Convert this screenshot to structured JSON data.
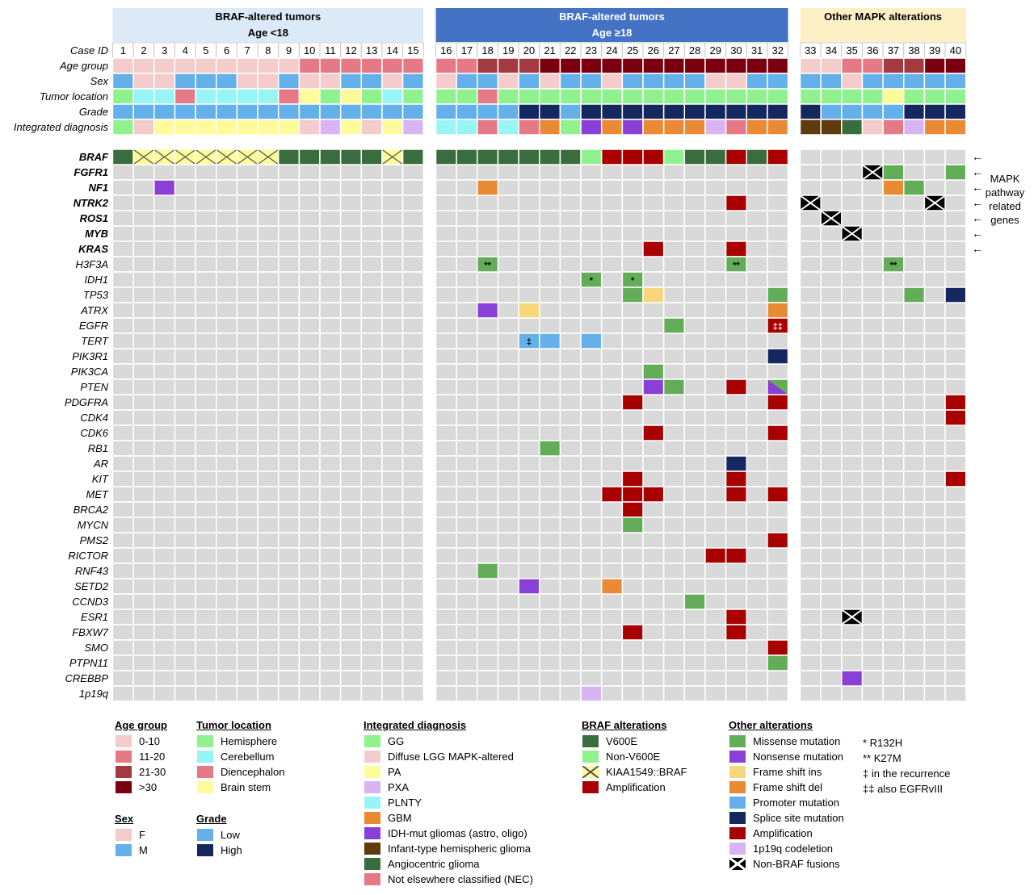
{
  "colors": {
    "empty": "#d9d9d9",
    "age": {
      "0-10": "#f4cccc",
      "11-20": "#e57a86",
      "21-30": "#a33a3f",
      ">30": "#7a0010"
    },
    "sex": {
      "F": "#f4cccc",
      "M": "#63b0ea"
    },
    "location": {
      "Hemisphere": "#8ff28f",
      "Cerebellum": "#97f5f5",
      "Diencephalon": "#e57a86",
      "Brain stem": "#fdfb9a"
    },
    "grade": {
      "Low": "#63b0ea",
      "High": "#15275f"
    },
    "diagnosis": {
      "GG": "#8ff28f",
      "Diffuse LGG MAPK-altered": "#f4cccc",
      "PA": "#fdfb9a",
      "PXA": "#d9b3f2",
      "PLNTY": "#97f5f5",
      "GBM": "#ea8a34",
      "IDH-mut gliomas (astro, oligo)": "#8a3fd6",
      "Infant-type hemispheric glioma": "#5e3a0c",
      "Angiocentric glioma": "#3a6d3d",
      "Not elsewhere classified (NEC)": "#e57a86"
    },
    "braf": {
      "V600E": "#3a6d3d",
      "Non-V600E": "#8ff28f",
      "KIAA1549::BRAF": "#fdfb9a",
      "Amplification": "#a80000"
    },
    "other": {
      "Missense mutation": "#63ad58",
      "Nonsense mutation": "#8a3fd6",
      "Frame shift ins": "#f7d77a",
      "Frame shift del": "#ea8a34",
      "Promoter mutation": "#63b0ea",
      "Splice site mutation": "#15275f",
      "Amplification": "#a80000",
      "1p19q codeletion": "#d9b3f2",
      "Non-BRAF fusions": "#000000"
    }
  },
  "chart_data": {
    "type": "heatmap",
    "title": "",
    "groups": [
      {
        "label": "BRAF-altered tumors",
        "sublabel": "Age <18",
        "cases": [
          1,
          15
        ]
      },
      {
        "label": "BRAF-altered tumors",
        "sublabel": "Age ≥18",
        "cases": [
          16,
          32
        ]
      },
      {
        "label": "Other MAPK alterations",
        "sublabel": "",
        "cases": [
          33,
          40
        ]
      }
    ],
    "case_ids": [
      "1",
      "2",
      "3",
      "4",
      "5",
      "6",
      "7",
      "8",
      "9",
      "10",
      "11",
      "12",
      "13",
      "14",
      "15",
      "16",
      "17",
      "18",
      "19",
      "20",
      "21",
      "22",
      "23",
      "24",
      "25",
      "26",
      "27",
      "28",
      "29",
      "30",
      "31",
      "32",
      "33",
      "34",
      "35",
      "36",
      "37",
      "38",
      "39",
      "40"
    ],
    "clinical_rows": [
      {
        "label": "Age group",
        "key": "age",
        "values": [
          "0-10",
          "0-10",
          "0-10",
          "0-10",
          "0-10",
          "0-10",
          "0-10",
          "0-10",
          "0-10",
          "11-20",
          "11-20",
          "11-20",
          "11-20",
          "11-20",
          "11-20",
          "11-20",
          "11-20",
          "21-30",
          "21-30",
          "21-30",
          ">30",
          ">30",
          ">30",
          ">30",
          ">30",
          ">30",
          ">30",
          ">30",
          ">30",
          ">30",
          ">30",
          ">30",
          "0-10",
          "0-10",
          "11-20",
          "11-20",
          "21-30",
          "21-30",
          ">30",
          ">30"
        ]
      },
      {
        "label": "Sex",
        "key": "sex",
        "values": [
          "M",
          "F",
          "F",
          "M",
          "M",
          "M",
          "F",
          "F",
          "M",
          "F",
          "F",
          "M",
          "M",
          "F",
          "M",
          "F",
          "M",
          "M",
          "F",
          "M",
          "F",
          "M",
          "M",
          "F",
          "M",
          "M",
          "M",
          "M",
          "F",
          "F",
          "M",
          "M",
          "M",
          "M",
          "F",
          "M",
          "M",
          "M",
          "M",
          "M"
        ]
      },
      {
        "label": "Tumor location",
        "key": "location",
        "values": [
          "Hemisphere",
          "Cerebellum",
          "Cerebellum",
          "Diencephalon",
          "Cerebellum",
          "Cerebellum",
          "Cerebellum",
          "Cerebellum",
          "Diencephalon",
          "Brain stem",
          "Hemisphere",
          "Brain stem",
          "Hemisphere",
          "Cerebellum",
          "Hemisphere",
          "Hemisphere",
          "Hemisphere",
          "Diencephalon",
          "Hemisphere",
          "Hemisphere",
          "Hemisphere",
          "Hemisphere",
          "Hemisphere",
          "Hemisphere",
          "Hemisphere",
          "Hemisphere",
          "Hemisphere",
          "Hemisphere",
          "Hemisphere",
          "Hemisphere",
          "Hemisphere",
          "Hemisphere",
          "Hemisphere",
          "Hemisphere",
          "Hemisphere",
          "Hemisphere",
          "Brain stem",
          "Hemisphere",
          "Hemisphere",
          "Hemisphere"
        ]
      },
      {
        "label": "Grade",
        "key": "grade",
        "values": [
          "Low",
          "Low",
          "Low",
          "Low",
          "Low",
          "Low",
          "Low",
          "Low",
          "Low",
          "Low",
          "Low",
          "Low",
          "Low",
          "Low",
          "Low",
          "Low",
          "Low",
          "Low",
          "Low",
          "High",
          "High",
          "Low",
          "High",
          "High",
          "High",
          "High",
          "High",
          "High",
          "High",
          "High",
          "High",
          "High",
          "High",
          "Low",
          "Low",
          "Low",
          "Low",
          "High",
          "High",
          "High"
        ]
      },
      {
        "label": "Integrated diagnosis",
        "key": "diagnosis",
        "values": [
          "GG",
          "Diffuse LGG MAPK-altered",
          "PA",
          "PA",
          "PA",
          "PA",
          "PA",
          "PA",
          "PA",
          "Diffuse LGG MAPK-altered",
          "PXA",
          "PA",
          "Diffuse LGG MAPK-altered",
          "PA",
          "PXA",
          "PLNTY",
          "PLNTY",
          "Not elsewhere classified (NEC)",
          "PLNTY",
          "Not elsewhere classified (NEC)",
          "GBM",
          "GG",
          "IDH-mut gliomas (astro, oligo)",
          "GBM",
          "IDH-mut gliomas (astro, oligo)",
          "GBM",
          "GBM",
          "GBM",
          "PXA",
          "Not elsewhere classified (NEC)",
          "GBM",
          "GBM",
          "Infant-type hemispheric glioma",
          "Infant-type hemispheric glioma",
          "Angiocentric glioma",
          "Diffuse LGG MAPK-altered",
          "Not elsewhere classified (NEC)",
          "PXA",
          "GBM",
          "GBM"
        ]
      }
    ],
    "genes": [
      {
        "label": "BRAF",
        "bold": true
      },
      {
        "label": "FGFR1",
        "bold": true
      },
      {
        "label": "NF1",
        "bold": true
      },
      {
        "label": "NTRK2",
        "bold": true
      },
      {
        "label": "ROS1",
        "bold": true
      },
      {
        "label": "MYB",
        "bold": true
      },
      {
        "label": "KRAS",
        "bold": true
      },
      {
        "label": "H3F3A"
      },
      {
        "label": "IDH1"
      },
      {
        "label": "TP53"
      },
      {
        "label": "ATRX"
      },
      {
        "label": "EGFR"
      },
      {
        "label": "TERT"
      },
      {
        "label": "PIK3R1"
      },
      {
        "label": "PIK3CA"
      },
      {
        "label": "PTEN"
      },
      {
        "label": "PDGFRA"
      },
      {
        "label": "CDK4"
      },
      {
        "label": "CDK6"
      },
      {
        "label": "RB1"
      },
      {
        "label": "AR"
      },
      {
        "label": "KIT"
      },
      {
        "label": "MET"
      },
      {
        "label": "BRCA2"
      },
      {
        "label": "MYCN"
      },
      {
        "label": "PMS2"
      },
      {
        "label": "RICTOR"
      },
      {
        "label": "RNF43"
      },
      {
        "label": "SETD2"
      },
      {
        "label": "CCND3"
      },
      {
        "label": "ESR1"
      },
      {
        "label": "FBXW7"
      },
      {
        "label": "SMO"
      },
      {
        "label": "PTPN11"
      },
      {
        "label": "CREBBP"
      },
      {
        "label": "1p19q"
      }
    ],
    "braf_row": [
      "V600E",
      "KIAA1549::BRAF",
      "KIAA1549::BRAF",
      "KIAA1549::BRAF",
      "KIAA1549::BRAF",
      "KIAA1549::BRAF",
      "KIAA1549::BRAF",
      "KIAA1549::BRAF",
      "V600E",
      "V600E",
      "V600E",
      "V600E",
      "V600E",
      "KIAA1549::BRAF",
      "V600E",
      "V600E",
      "V600E",
      "V600E",
      "V600E",
      "V600E",
      "V600E",
      "V600E",
      "Non-V600E",
      "Amplification",
      "Amplification",
      "Amplification",
      "Non-V600E",
      "V600E",
      "V600E",
      "Amplification",
      "V600E",
      "Amplification",
      "",
      "",
      "",
      "",
      "",
      "",
      "",
      ""
    ],
    "alterations": [
      {
        "gene": "FGFR1",
        "case": 36,
        "type": "Non-BRAF fusions"
      },
      {
        "gene": "FGFR1",
        "case": 37,
        "type": "Missense mutation"
      },
      {
        "gene": "FGFR1",
        "case": 40,
        "type": "Missense mutation"
      },
      {
        "gene": "NF1",
        "case": 3,
        "type": "Nonsense mutation"
      },
      {
        "gene": "NF1",
        "case": 18,
        "type": "Frame shift del"
      },
      {
        "gene": "NF1",
        "case": 37,
        "type": "Frame shift del"
      },
      {
        "gene": "NF1",
        "case": 38,
        "type": "Missense mutation"
      },
      {
        "gene": "NTRK2",
        "case": 30,
        "type": "Amplification"
      },
      {
        "gene": "NTRK2",
        "case": 33,
        "type": "Non-BRAF fusions"
      },
      {
        "gene": "NTRK2",
        "case": 39,
        "type": "Non-BRAF fusions"
      },
      {
        "gene": "ROS1",
        "case": 34,
        "type": "Non-BRAF fusions"
      },
      {
        "gene": "MYB",
        "case": 35,
        "type": "Non-BRAF fusions"
      },
      {
        "gene": "KRAS",
        "case": 26,
        "type": "Amplification"
      },
      {
        "gene": "KRAS",
        "case": 30,
        "type": "Amplification"
      },
      {
        "gene": "H3F3A",
        "case": 18,
        "type": "Missense mutation",
        "mark": "**"
      },
      {
        "gene": "H3F3A",
        "case": 30,
        "type": "Missense mutation",
        "mark": "**"
      },
      {
        "gene": "H3F3A",
        "case": 37,
        "type": "Missense mutation",
        "mark": "**"
      },
      {
        "gene": "IDH1",
        "case": 23,
        "type": "Missense mutation",
        "mark": "*"
      },
      {
        "gene": "IDH1",
        "case": 25,
        "type": "Missense mutation",
        "mark": "*"
      },
      {
        "gene": "TP53",
        "case": 25,
        "type": "Missense mutation"
      },
      {
        "gene": "TP53",
        "case": 26,
        "type": "Frame shift ins"
      },
      {
        "gene": "TP53",
        "case": 32,
        "type": "Missense mutation"
      },
      {
        "gene": "TP53",
        "case": 38,
        "type": "Missense mutation"
      },
      {
        "gene": "TP53",
        "case": 40,
        "type": "Splice site mutation"
      },
      {
        "gene": "ATRX",
        "case": 18,
        "type": "Nonsense mutation"
      },
      {
        "gene": "ATRX",
        "case": 20,
        "type": "Frame shift ins"
      },
      {
        "gene": "ATRX",
        "case": 32,
        "type": "Frame shift del"
      },
      {
        "gene": "EGFR",
        "case": 27,
        "type": "Missense mutation"
      },
      {
        "gene": "EGFR",
        "case": 32,
        "type": "Amplification",
        "mark": "‡‡"
      },
      {
        "gene": "TERT",
        "case": 20,
        "type": "Promoter mutation",
        "mark": "‡"
      },
      {
        "gene": "TERT",
        "case": 21,
        "type": "Promoter mutation"
      },
      {
        "gene": "TERT",
        "case": 23,
        "type": "Promoter mutation"
      },
      {
        "gene": "PIK3R1",
        "case": 32,
        "type": "Splice site mutation"
      },
      {
        "gene": "PIK3CA",
        "case": 26,
        "type": "Missense mutation"
      },
      {
        "gene": "PTEN",
        "case": 26,
        "type": "Nonsense mutation"
      },
      {
        "gene": "PTEN",
        "case": 27,
        "type": "Missense mutation"
      },
      {
        "gene": "PTEN",
        "case": 30,
        "type": "Amplification"
      },
      {
        "gene": "PTEN",
        "case": 32,
        "type": "Missense mutation",
        "type2": "Nonsense mutation"
      },
      {
        "gene": "PDGFRA",
        "case": 25,
        "type": "Amplification"
      },
      {
        "gene": "PDGFRA",
        "case": 32,
        "type": "Amplification"
      },
      {
        "gene": "PDGFRA",
        "case": 40,
        "type": "Amplification"
      },
      {
        "gene": "CDK4",
        "case": 40,
        "type": "Amplification"
      },
      {
        "gene": "CDK6",
        "case": 26,
        "type": "Amplification"
      },
      {
        "gene": "CDK6",
        "case": 32,
        "type": "Amplification"
      },
      {
        "gene": "RB1",
        "case": 21,
        "type": "Missense mutation"
      },
      {
        "gene": "AR",
        "case": 30,
        "type": "Splice site mutation"
      },
      {
        "gene": "KIT",
        "case": 25,
        "type": "Amplification"
      },
      {
        "gene": "KIT",
        "case": 30,
        "type": "Amplification"
      },
      {
        "gene": "KIT",
        "case": 40,
        "type": "Amplification"
      },
      {
        "gene": "MET",
        "case": 24,
        "type": "Amplification"
      },
      {
        "gene": "MET",
        "case": 25,
        "type": "Amplification"
      },
      {
        "gene": "MET",
        "case": 26,
        "type": "Amplification"
      },
      {
        "gene": "MET",
        "case": 30,
        "type": "Amplification"
      },
      {
        "gene": "MET",
        "case": 32,
        "type": "Amplification"
      },
      {
        "gene": "BRCA2",
        "case": 25,
        "type": "Amplification"
      },
      {
        "gene": "MYCN",
        "case": 25,
        "type": "Missense mutation"
      },
      {
        "gene": "PMS2",
        "case": 32,
        "type": "Amplification"
      },
      {
        "gene": "RICTOR",
        "case": 29,
        "type": "Amplification"
      },
      {
        "gene": "RICTOR",
        "case": 30,
        "type": "Amplification"
      },
      {
        "gene": "RNF43",
        "case": 18,
        "type": "Missense mutation"
      },
      {
        "gene": "SETD2",
        "case": 20,
        "type": "Nonsense mutation"
      },
      {
        "gene": "SETD2",
        "case": 24,
        "type": "Frame shift del"
      },
      {
        "gene": "CCND3",
        "case": 28,
        "type": "Missense mutation"
      },
      {
        "gene": "ESR1",
        "case": 30,
        "type": "Amplification"
      },
      {
        "gene": "ESR1",
        "case": 35,
        "type": "Non-BRAF fusions"
      },
      {
        "gene": "FBXW7",
        "case": 25,
        "type": "Amplification"
      },
      {
        "gene": "FBXW7",
        "case": 30,
        "type": "Amplification"
      },
      {
        "gene": "SMO",
        "case": 32,
        "type": "Amplification"
      },
      {
        "gene": "PTPN11",
        "case": 32,
        "type": "Missense mutation"
      },
      {
        "gene": "CREBBP",
        "case": 35,
        "type": "Nonsense mutation"
      },
      {
        "gene": "1p19q",
        "case": 23,
        "type": "1p19q codeletion"
      }
    ],
    "mapk_genes": [
      "BRAF",
      "FGFR1",
      "NF1",
      "NTRK2",
      "ROS1",
      "MYB",
      "KRAS"
    ],
    "mapk_note": [
      "MAPK",
      "pathway",
      "related",
      "genes"
    ],
    "arrow_glyph": "←",
    "case_id_label": "Case ID"
  },
  "legend": {
    "age_group": {
      "title": "Age group",
      "items": [
        "0-10",
        "11-20",
        "21-30",
        ">30"
      ]
    },
    "sex": {
      "title": "Sex",
      "items": [
        "F",
        "M"
      ]
    },
    "tumor_location": {
      "title": "Tumor location",
      "items": [
        "Hemisphere",
        "Cerebellum",
        "Diencephalon",
        "Brain stem"
      ]
    },
    "grade": {
      "title": "Grade",
      "items": [
        "Low",
        "High"
      ]
    },
    "integrated_diagnosis": {
      "title": "Integrated diagnosis",
      "items": [
        "GG",
        "Diffuse LGG MAPK-altered",
        "PA",
        "PXA",
        "PLNTY",
        "GBM",
        "IDH-mut gliomas (astro, oligo)",
        "Infant-type hemispheric glioma",
        "Angiocentric glioma",
        "Not elsewhere classified (NEC)"
      ]
    },
    "braf_alterations": {
      "title": "BRAF alterations",
      "items": [
        "V600E",
        "Non-V600E",
        "KIAA1549::BRAF",
        "Amplification"
      ]
    },
    "other_alterations": {
      "title": "Other alterations",
      "items": [
        "Missense mutation",
        "Nonsense mutation",
        "Frame shift ins",
        "Frame shift del",
        "Promoter mutation",
        "Splice site mutation",
        "Amplification",
        "1p19q codeletion",
        "Non-BRAF fusions"
      ]
    },
    "notes": [
      "* R132H",
      "** K27M",
      "‡ in the recurrence",
      "‡‡ also EGFRvIII"
    ]
  }
}
